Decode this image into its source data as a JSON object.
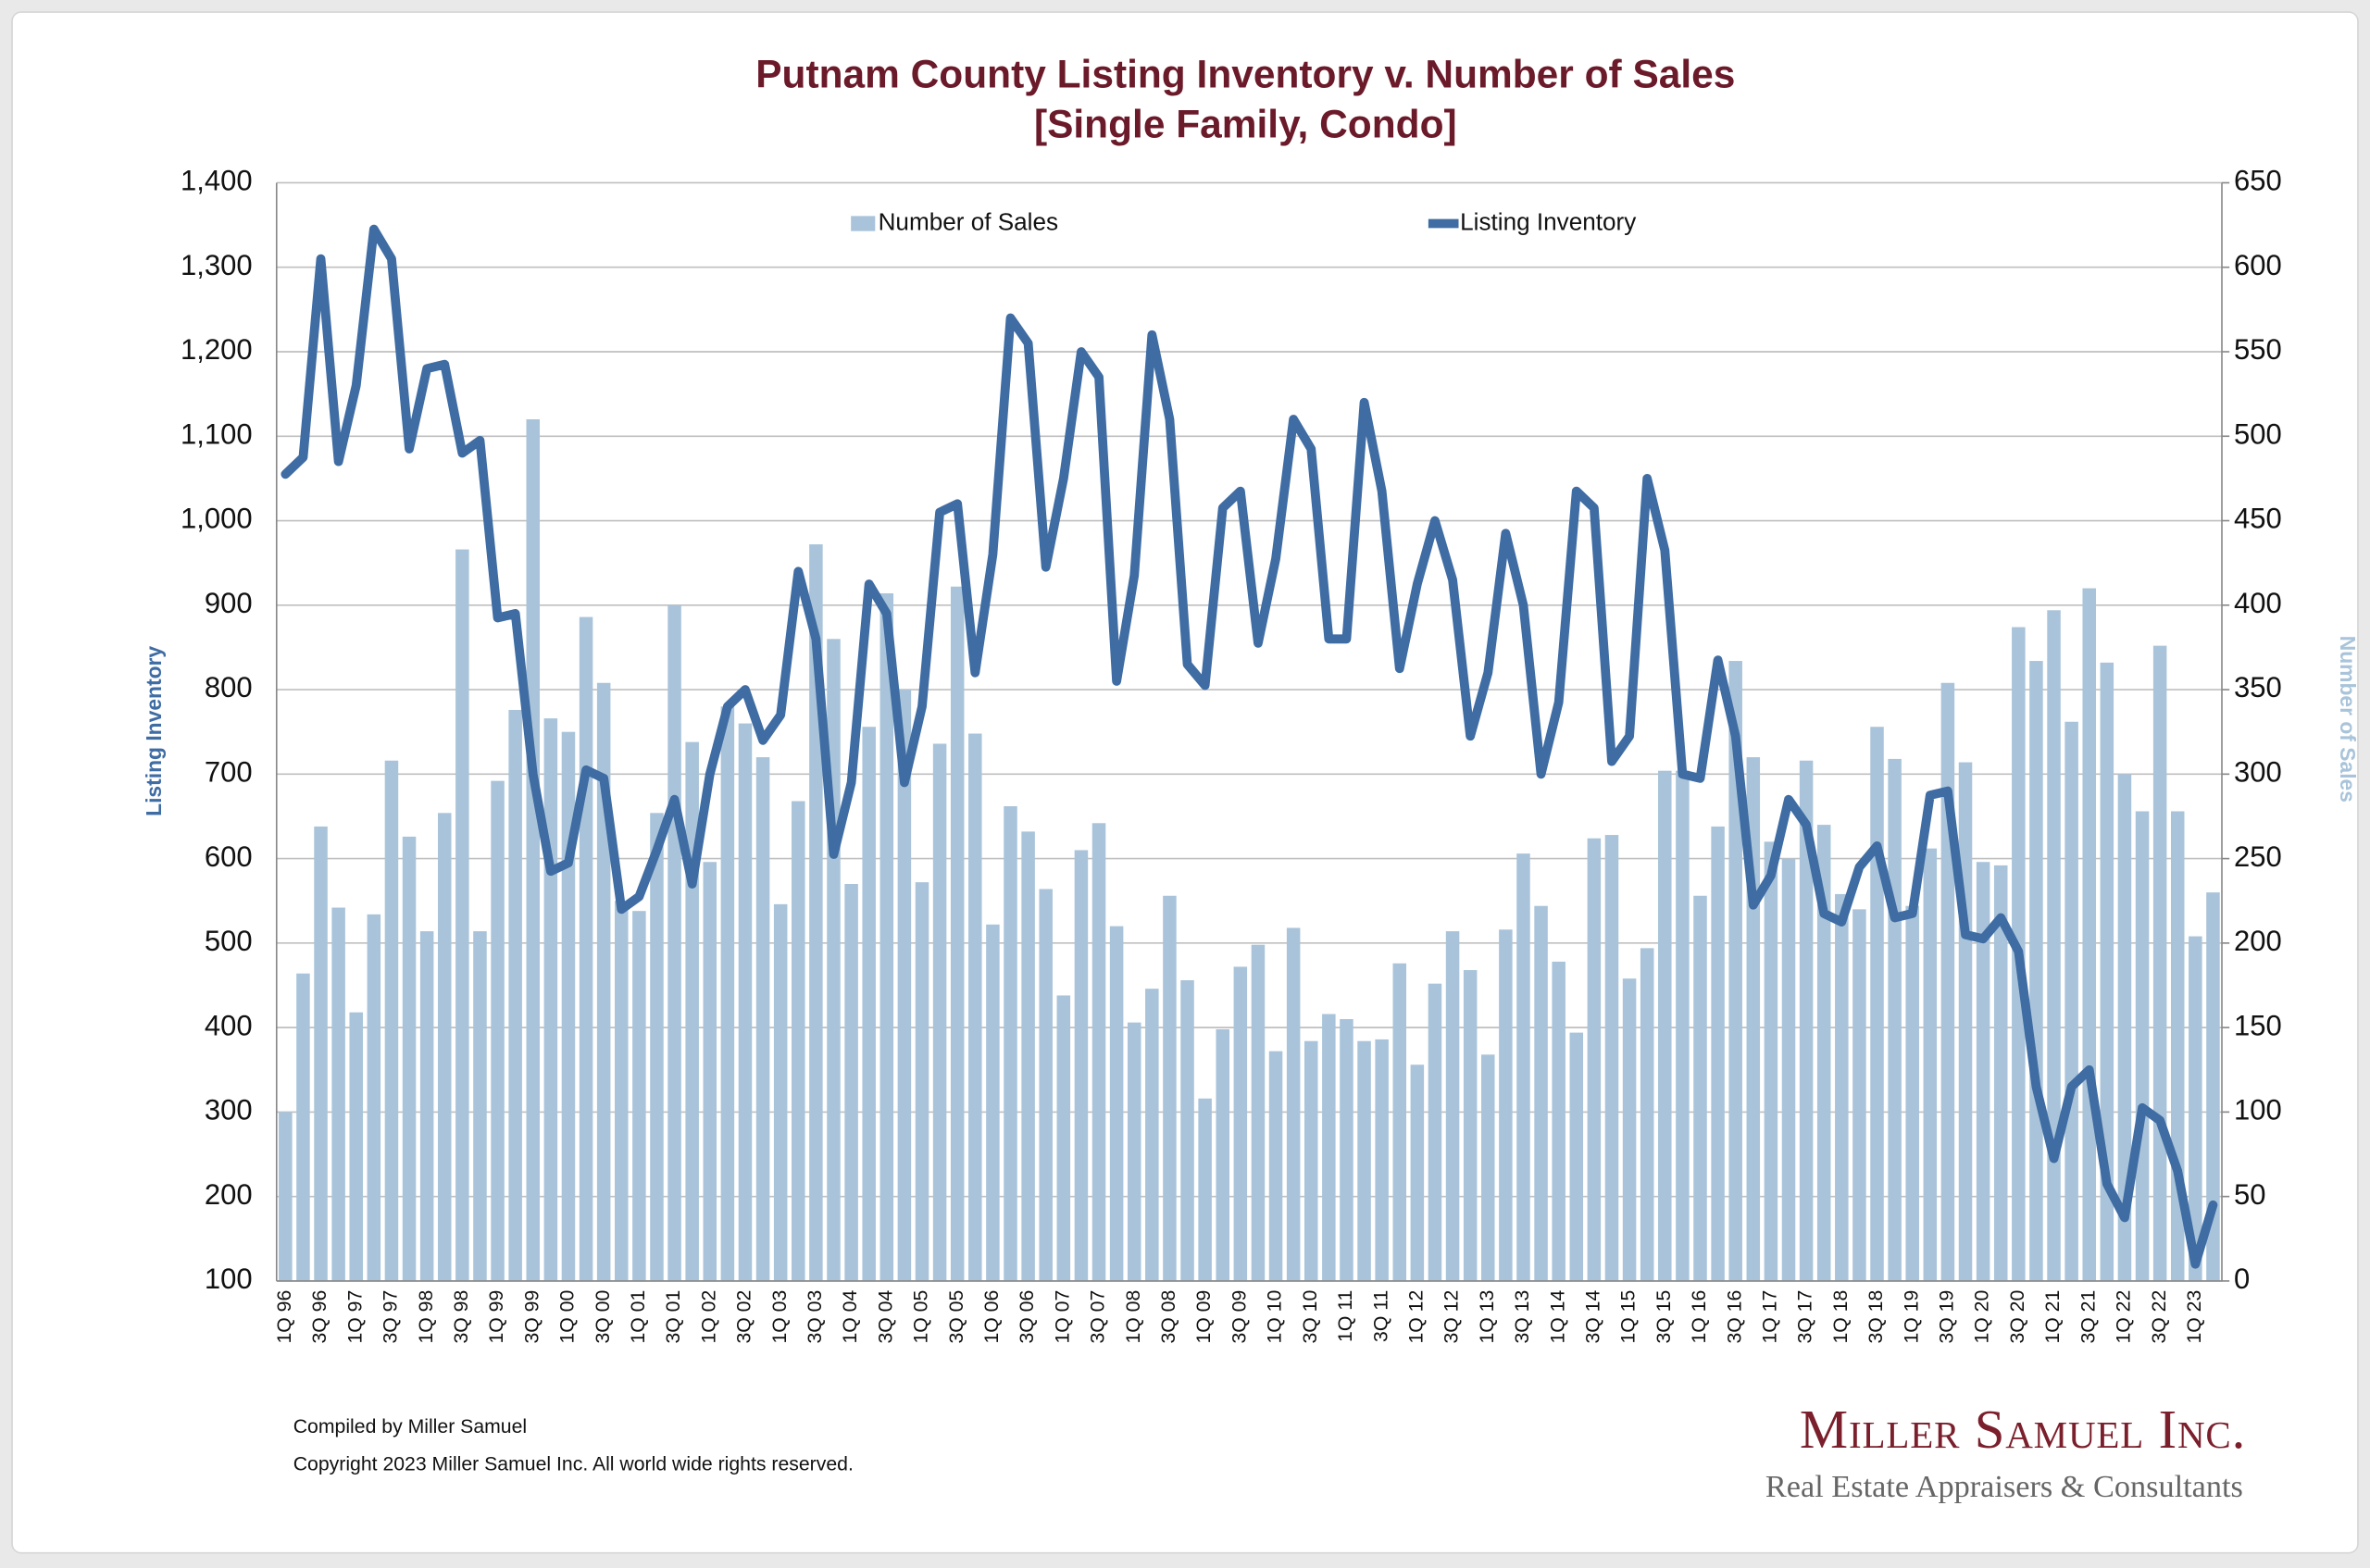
{
  "chart_data": {
    "type": "combo",
    "title": "Putnam County Listing Inventory v. Number of Sales",
    "subtitle": "[Single Family, Condo]",
    "ylabel": "Listing Inventory",
    "y2label": "Number of Sales",
    "categories": [
      "1Q 96",
      null,
      "3Q 96",
      null,
      "1Q 97",
      null,
      "3Q 97",
      null,
      "1Q 98",
      null,
      "3Q 98",
      null,
      "1Q 99",
      null,
      "3Q 99",
      null,
      "1Q 00",
      null,
      "3Q 00",
      null,
      "1Q 01",
      null,
      "3Q 01",
      null,
      "1Q 02",
      null,
      "3Q 02",
      null,
      "1Q 03",
      null,
      "3Q 03",
      null,
      "1Q 04",
      null,
      "3Q 04",
      null,
      "1Q 05",
      null,
      "3Q 05",
      null,
      "1Q 06",
      null,
      "3Q 06",
      null,
      "1Q 07",
      null,
      "3Q 07",
      null,
      "1Q 08",
      null,
      "3Q 08",
      null,
      "1Q 09",
      null,
      "3Q 09",
      null,
      "1Q 10",
      null,
      "3Q 10",
      null,
      "1Q 11",
      null,
      "3Q 11",
      null,
      "1Q 12",
      null,
      "3Q 12",
      null,
      "1Q 13",
      null,
      "3Q 13",
      null,
      "1Q 14",
      null,
      "3Q 14",
      null,
      "1Q 15",
      null,
      "3Q 15",
      null,
      "1Q 16",
      null,
      "3Q 16",
      null,
      "1Q 17",
      null,
      "3Q 17",
      null,
      "1Q 18",
      null,
      "3Q 18",
      null,
      "1Q 19",
      null,
      "3Q 19",
      null,
      "1Q 20",
      null,
      "3Q 20",
      null,
      "1Q 21",
      null,
      "3Q 21",
      null,
      "1Q 22",
      null,
      "3Q 22",
      null,
      "1Q 23",
      null
    ],
    "series": [
      {
        "name": "Number of Sales",
        "type": "bar",
        "axis": "y2",
        "color": "#a9c4da",
        "values": [
          100,
          182,
          269,
          221,
          159,
          217,
          308,
          263,
          207,
          277,
          433,
          207,
          296,
          338,
          510,
          333,
          325,
          393,
          354,
          225,
          219,
          277,
          400,
          319,
          248,
          340,
          330,
          310,
          223,
          284,
          436,
          380,
          235,
          328,
          407,
          350,
          236,
          318,
          411,
          324,
          211,
          281,
          266,
          232,
          169,
          255,
          271,
          210,
          153,
          173,
          228,
          178,
          108,
          149,
          186,
          199,
          136,
          209,
          142,
          158,
          155,
          142,
          143,
          188,
          128,
          176,
          207,
          184,
          134,
          208,
          253,
          222,
          189,
          147,
          262,
          264,
          179,
          197,
          302,
          302,
          228,
          269,
          367,
          310,
          260,
          250,
          308,
          270,
          229,
          220,
          328,
          309,
          222,
          256,
          354,
          307,
          248,
          246,
          387,
          367,
          397,
          331,
          410,
          366,
          300,
          278,
          376,
          278,
          204,
          230
        ]
      },
      {
        "name": "Listing Inventory",
        "type": "line",
        "color": "#3e6ca3",
        "values": [
          1055,
          1075,
          1310,
          1070,
          1160,
          1345,
          1310,
          1085,
          1180,
          1185,
          1080,
          1095,
          885,
          890,
          700,
          585,
          595,
          705,
          695,
          540,
          555,
          610,
          670,
          570,
          700,
          780,
          800,
          740,
          770,
          940,
          860,
          605,
          690,
          925,
          890,
          690,
          780,
          1010,
          1020,
          820,
          960,
          1240,
          1210,
          945,
          1050,
          1200,
          1170,
          810,
          935,
          1220,
          1120,
          830,
          805,
          1015,
          1035,
          855,
          955,
          1120,
          1085,
          860,
          860,
          1140,
          1035,
          825,
          925,
          1000,
          930,
          745,
          820,
          985,
          900,
          700,
          785,
          1035,
          1015,
          715,
          745,
          1050,
          965,
          700,
          695,
          835,
          745,
          545,
          580,
          670,
          640,
          535,
          525,
          590,
          615,
          530,
          535,
          675,
          680,
          510,
          505,
          530,
          490,
          330,
          245,
          330,
          350,
          215,
          175,
          305,
          290,
          230,
          120,
          190
        ]
      }
    ],
    "ylim": [
      100,
      1400
    ],
    "yticks": [
      100,
      200,
      300,
      400,
      500,
      600,
      700,
      800,
      900,
      {
        "value": 1000,
        "label": "1,000"
      },
      {
        "value": 1100,
        "label": "1,100"
      },
      {
        "value": 1200,
        "label": "1,200"
      },
      {
        "value": 1300,
        "label": "1,300"
      },
      {
        "value": 1400,
        "label": "1,400"
      }
    ],
    "y2lim": [
      0,
      650
    ],
    "y2ticks": [
      0,
      50,
      100,
      150,
      200,
      250,
      300,
      350,
      400,
      450,
      500,
      550,
      600,
      650
    ],
    "grid": true
  },
  "footer": {
    "compiled": "Compiled by Miller Samuel",
    "copyright": "Copyright 2023 Miller Samuel Inc.  All world wide rights reserved."
  },
  "logo": {
    "name": "Miller Samuel Inc.",
    "tagline": "Real Estate Appraisers & Consultants"
  }
}
